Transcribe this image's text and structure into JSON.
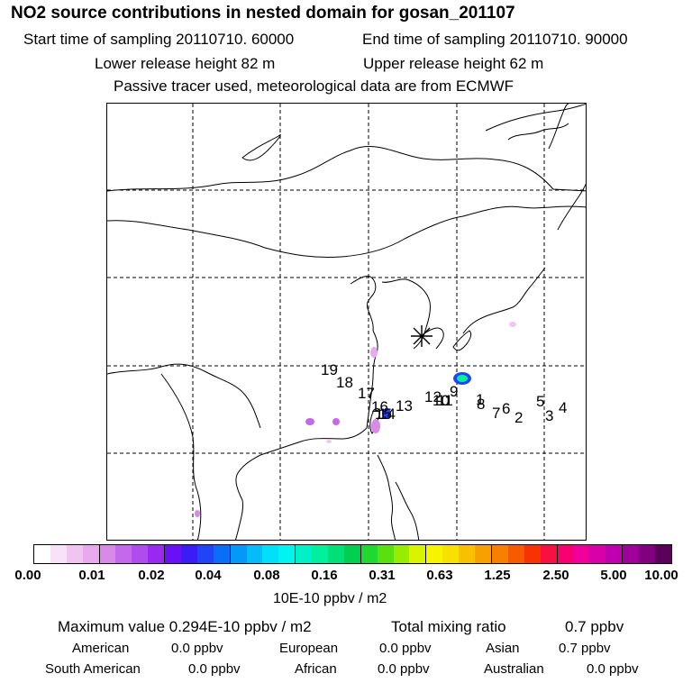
{
  "title": "NO2 source contributions in nested domain for gosan_201107",
  "header": {
    "start_label": "Start time of sampling 20110710. 60000",
    "end_label": "End time of sampling 20110710. 90000",
    "lower_label": "Lower release height   82 m",
    "upper_label": "Upper release height   62 m",
    "tracer_note": "Passive tracer used, meteorological data are from ECMWF"
  },
  "map": {
    "receptor_marker": "asterisk-icon",
    "trajectory_labels": [
      "19",
      "18",
      "17",
      "16",
      "15",
      "14",
      "13",
      "12",
      "11",
      "10",
      "9",
      "8",
      "7",
      "6",
      "5",
      "4",
      "3",
      "2",
      "1"
    ]
  },
  "colorbar": {
    "tick_labels": [
      "0.00",
      "0.01",
      "0.02",
      "0.04",
      "0.08",
      "0.16",
      "0.31",
      "0.63",
      "1.25",
      "2.50",
      "5.00",
      "10.00"
    ],
    "colors": [
      "#ffffff",
      "#f8e2f8",
      "#f0c6f0",
      "#e8aaec",
      "#d88ae8",
      "#c468ec",
      "#b04cee",
      "#9a28f0",
      "#6a10f4",
      "#3a1cf4",
      "#2244f8",
      "#0a6ef8",
      "#0698f8",
      "#04bcf8",
      "#00e0f8",
      "#00f4f0",
      "#00f0c8",
      "#00f0a0",
      "#00e078",
      "#00d050",
      "#20d830",
      "#58e010",
      "#98ec00",
      "#d8f400",
      "#f8f400",
      "#f8e000",
      "#f8c000",
      "#f8a000",
      "#f88000",
      "#f85a00",
      "#f83200",
      "#f81040",
      "#f80070",
      "#f0009a",
      "#d800a8",
      "#c000b0",
      "#a0009a",
      "#800080",
      "#5a005a"
    ],
    "units": "10E-10 ppbv / m2"
  },
  "summary": {
    "max_label": "Maximum value  0.294E-10 ppbv / m2",
    "total_label": "Total mixing ratio",
    "total_value": "0.7 ppbv",
    "regions": [
      {
        "name": "American",
        "value": "0.0 ppbv"
      },
      {
        "name": "European",
        "value": "0.0 ppbv"
      },
      {
        "name": "Asian",
        "value": "0.7 ppbv"
      },
      {
        "name": "South American",
        "value": "0.0 ppbv"
      },
      {
        "name": "African",
        "value": "0.0 ppbv"
      },
      {
        "name": "Australian",
        "value": "0.0 ppbv"
      }
    ]
  }
}
